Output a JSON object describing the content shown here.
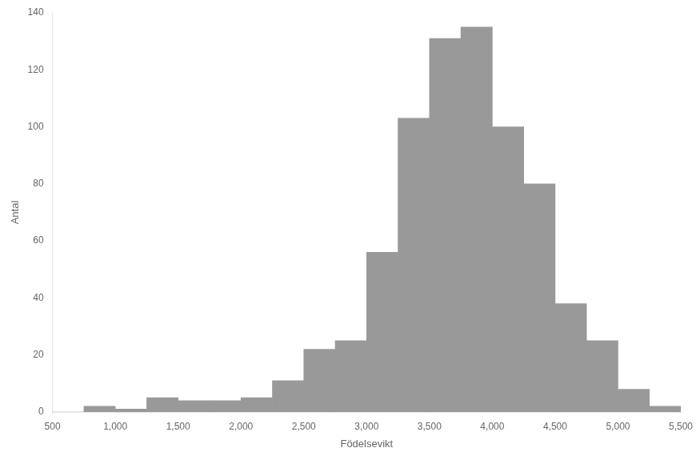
{
  "chart_data": {
    "type": "histogram",
    "xlabel": "Födelsevikt",
    "ylabel": "Antal",
    "bins": [
      500,
      750,
      1000,
      1250,
      1500,
      1750,
      2000,
      2250,
      2500,
      2750,
      3000,
      3250,
      3500,
      3750,
      4000,
      4250,
      4500,
      4750,
      5000,
      5250,
      5500
    ],
    "values": [
      0,
      2,
      1,
      5,
      4,
      4,
      5,
      11,
      22,
      25,
      56,
      103,
      131,
      135,
      100,
      80,
      38,
      25,
      8,
      2
    ],
    "color": "#999999",
    "xlim": [
      500,
      5500
    ],
    "ylim": [
      0,
      140
    ],
    "xticks": [
      500,
      1000,
      1500,
      2000,
      2500,
      3000,
      3500,
      4000,
      4500,
      5000,
      5500
    ],
    "yticks": [
      0,
      20,
      40,
      60,
      80,
      100,
      120,
      140
    ],
    "grid": false
  }
}
